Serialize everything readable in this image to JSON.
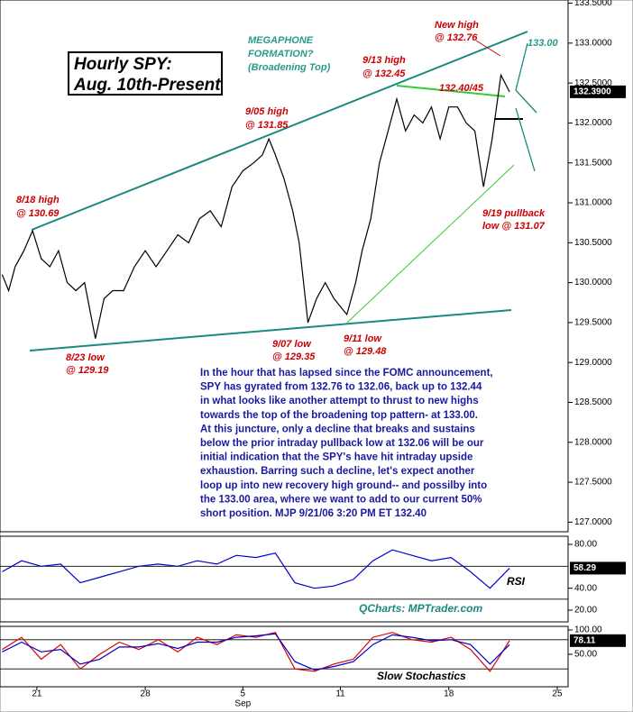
{
  "chart_data": [
    {
      "type": "line",
      "title": "Hourly SPY:",
      "subtitle": "Aug. 10th-Present",
      "color": "#000000",
      "x": [
        -1.6,
        -1.3,
        -1.0,
        -0.6,
        -0.2,
        0.2,
        0.6,
        1.0,
        1.4,
        1.8,
        2.2,
        2.7,
        3.1,
        3.5,
        4.0,
        4.5,
        5.0,
        5.5,
        6.0,
        6.5,
        7.0,
        7.5,
        8.0,
        8.5,
        9.0,
        9.5,
        10.0,
        10.4,
        10.7,
        11.0,
        11.4,
        11.8,
        12.1,
        12.5,
        12.9,
        13.3,
        13.7,
        14.3,
        14.7,
        15.0,
        15.4,
        15.8,
        16.2,
        16.6,
        17.0,
        17.4,
        17.8,
        18.2,
        18.6,
        19.0,
        19.4,
        19.8,
        20.2,
        20.6,
        21.0,
        21.4,
        21.8
      ],
      "values": [
        130.1,
        129.9,
        130.2,
        130.4,
        130.65,
        130.3,
        130.2,
        130.4,
        130.0,
        129.9,
        130.0,
        129.3,
        129.8,
        129.9,
        129.9,
        130.2,
        130.4,
        130.2,
        130.4,
        130.6,
        130.5,
        130.8,
        130.9,
        130.7,
        131.2,
        131.4,
        131.5,
        131.6,
        131.8,
        131.6,
        131.3,
        130.9,
        130.5,
        129.5,
        129.8,
        130.0,
        129.8,
        129.6,
        130.0,
        130.4,
        130.8,
        131.5,
        131.9,
        132.3,
        131.9,
        132.1,
        132.0,
        132.2,
        131.8,
        132.2,
        132.2,
        132.0,
        131.9,
        131.2,
        131.8,
        132.6,
        132.39
      ],
      "last": {
        "value": 132.39,
        "label": "132.3900"
      },
      "xlim": [
        -1.7,
        24.5
      ],
      "ylim": [
        126.88,
        133.54
      ],
      "xticks": [
        {
          "value": 0,
          "label": "21"
        },
        {
          "value": 5,
          "label": "28"
        },
        {
          "value": 9.5,
          "label": "5"
        },
        {
          "value": 14,
          "label": "11"
        },
        {
          "value": 19,
          "label": "18"
        },
        {
          "value": 24,
          "label": "25"
        }
      ],
      "month_label": "Sep",
      "yticks": [
        {
          "value": 127.0,
          "label": "127.0000"
        },
        {
          "value": 127.5,
          "label": "127.5000"
        },
        {
          "value": 128.0,
          "label": "128.0000"
        },
        {
          "value": 128.5,
          "label": "128.5000"
        },
        {
          "value": 129.0,
          "label": "129.0000"
        },
        {
          "value": 129.5,
          "label": "129.5000"
        },
        {
          "value": 130.0,
          "label": "130.0000"
        },
        {
          "value": 130.5,
          "label": "130.5000"
        },
        {
          "value": 131.0,
          "label": "131.0000"
        },
        {
          "value": 131.5,
          "label": "131.5000"
        },
        {
          "value": 132.0,
          "label": "132.0000"
        },
        {
          "value": 132.5,
          "label": "132.5000"
        },
        {
          "value": 133.0,
          "label": "133.0000"
        },
        {
          "value": 133.5,
          "label": "133.5000"
        }
      ],
      "annotations": [
        "MEGAPHONE",
        "FORMATION?",
        "(Broadening Top)",
        "New high",
        "@ 132.76",
        "133.00",
        "9/13 high",
        "@ 132.45",
        "132.40/45",
        "9/05 high",
        "@ 131.85",
        "8/18 high",
        "@ 130.69",
        "9/19 pullback",
        "low @ 131.07",
        "8/23 low",
        "@ 129.19",
        "9/07 low",
        "@ 129.35",
        "9/11 low",
        "@ 129.48"
      ],
      "commentary": [
        "In the hour that has lapsed since the FOMC announcement,",
        "SPY has gyrated from 132.76 to 132.06, back up to 132.44",
        "in what looks like another attempt to thrust to new highs",
        "towards the top of the broadening top pattern- at 133.00.",
        "At this juncture, only a decline that breaks and sustains",
        "below the prior intraday pullback low at 132.06 will be our",
        "initial indication that the SPY's have hit intraday upside",
        "exhaustion. Barring such a decline, let's expect another",
        "loop up into new recovery high ground-- and possilby into",
        "the 133.00 area, where we want to add to our current 50%",
        "short position.  MJP  9/21/06  3:20  PM ET 132.40"
      ],
      "source": "QCharts: MPTrader.com"
    },
    {
      "type": "line",
      "xlim": [
        -1.7,
        24.5
      ],
      "ylim": [
        9.3,
        87.4
      ],
      "yticks": [
        {
          "value": 20,
          "label": "20.00"
        },
        {
          "value": 40,
          "label": "40.00"
        },
        {
          "value": 80,
          "label": "80.00"
        }
      ],
      "levels": [
        60,
        30
      ],
      "x": [
        -1.6,
        -0.7,
        0.2,
        1.1,
        2.0,
        2.9,
        3.8,
        4.7,
        5.6,
        6.5,
        7.4,
        8.3,
        9.2,
        10.1,
        11.0,
        11.9,
        12.8,
        13.7,
        14.6,
        15.5,
        16.4,
        17.3,
        18.2,
        19.1,
        20.0,
        20.9,
        21.8
      ],
      "series": [
        {
          "name": "RSI",
          "color": "#0000cc",
          "values": [
            55,
            65,
            60,
            62,
            45,
            50,
            55,
            60,
            62,
            60,
            65,
            62,
            70,
            68,
            72,
            45,
            40,
            42,
            48,
            65,
            75,
            70,
            65,
            68,
            55,
            40,
            58.29
          ]
        }
      ],
      "last": 58.29
    },
    {
      "type": "line",
      "title": "Slow Stochastics",
      "xlim": [
        -1.7,
        24.5
      ],
      "ylim": [
        -16.7,
        107.4
      ],
      "yticks": [
        {
          "value": 50,
          "label": "50.00"
        },
        {
          "value": 100,
          "label": "100.00"
        }
      ],
      "levels": [
        80,
        20
      ],
      "x": [
        -1.6,
        -0.7,
        0.2,
        1.1,
        2.0,
        2.9,
        3.8,
        4.7,
        5.6,
        6.5,
        7.4,
        8.3,
        9.2,
        10.1,
        11.0,
        11.9,
        12.8,
        13.7,
        14.6,
        15.5,
        16.4,
        17.3,
        18.2,
        19.1,
        20.0,
        20.9,
        21.8
      ],
      "series": [
        {
          "color": "#dd0000",
          "values": [
            60,
            85,
            40,
            70,
            20,
            50,
            75,
            60,
            80,
            55,
            85,
            70,
            90,
            85,
            95,
            20,
            15,
            30,
            40,
            85,
            95,
            80,
            75,
            85,
            60,
            15,
            78.11
          ]
        },
        {
          "color": "#0000cc",
          "values": [
            55,
            75,
            55,
            60,
            30,
            40,
            65,
            65,
            72,
            62,
            75,
            75,
            85,
            88,
            92,
            35,
            18,
            25,
            35,
            70,
            90,
            85,
            78,
            80,
            70,
            30,
            70
          ]
        }
      ],
      "last": 78.11
    }
  ]
}
